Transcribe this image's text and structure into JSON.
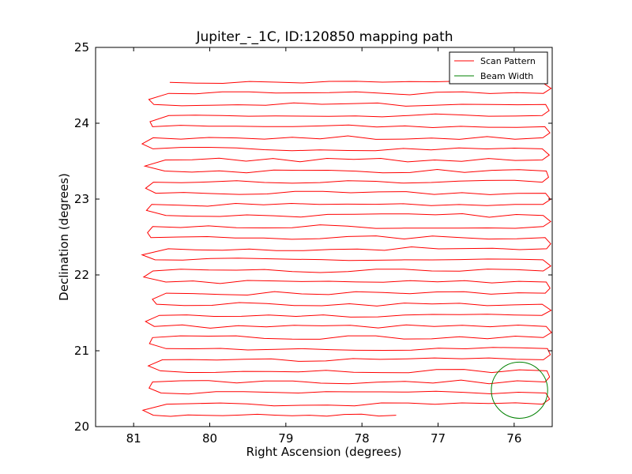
{
  "chart_data": {
    "type": "line",
    "title": "Jupiter_-_1C, ID:120850 mapping path",
    "xlabel": "Right Ascension (degrees)",
    "ylabel": "Declination (degrees)",
    "xlim": [
      81.5,
      75.5
    ],
    "ylim": [
      20,
      25
    ],
    "x_ticks": [
      "81",
      "80",
      "79",
      "78",
      "77",
      "76"
    ],
    "x_tick_values": [
      81,
      80,
      79,
      78,
      77,
      76
    ],
    "y_ticks": [
      "20",
      "21",
      "22",
      "23",
      "24",
      "25"
    ],
    "y_tick_values": [
      20,
      21,
      22,
      23,
      24,
      25
    ],
    "grid": false,
    "legend_position": "top-right",
    "series": [
      {
        "name": "Scan Pattern",
        "color": "#ff0000",
        "scan": {
          "ra_start": 80.65,
          "ra_end": 75.6,
          "dec_top": 24.54,
          "dec_bottom": 20.15,
          "rows": 31,
          "last_row_ra_end": 77.55
        }
      },
      {
        "name": "Beam Width",
        "color": "#008000",
        "circle": {
          "ra": 75.93,
          "dec": 20.48,
          "radius_deg": 0.37
        }
      }
    ]
  }
}
